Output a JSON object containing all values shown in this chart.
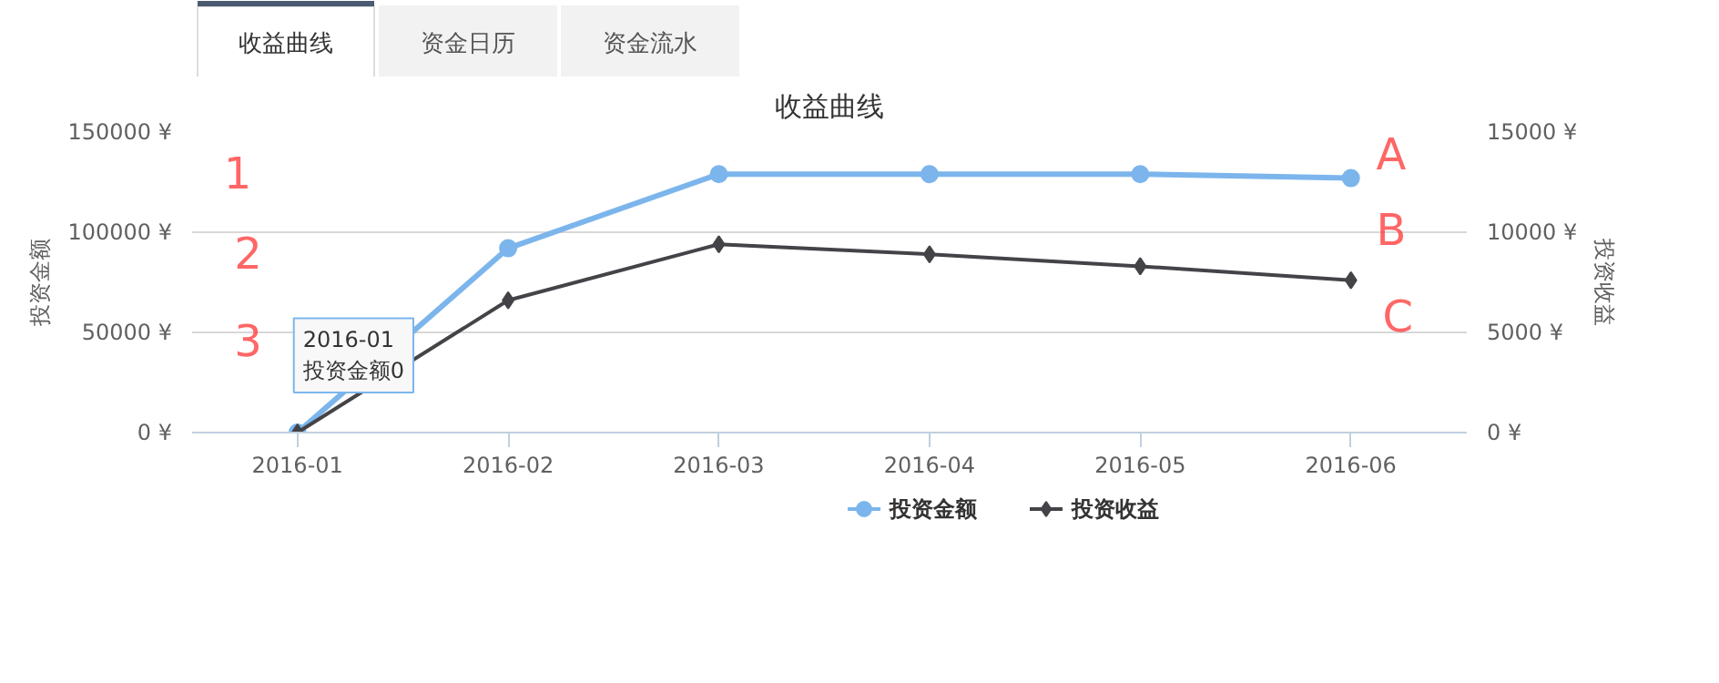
{
  "chart_data": {
    "type": "line",
    "title": "收益曲线",
    "ylabel": "投资金额",
    "y2label": "投资收益",
    "categories": [
      "2016-01",
      "2016-02",
      "2016-03",
      "2016-04",
      "2016-05",
      "2016-06"
    ],
    "series": [
      {
        "name": "投资金额",
        "color": "#7cb5ec",
        "marker": "circle",
        "values": [
          0,
          92000,
          129000,
          129000,
          129000,
          127000
        ]
      },
      {
        "name": "投资收益",
        "color": "#434348",
        "marker": "diamond",
        "axis": "y2",
        "values": [
          0,
          6600,
          9400,
          8900,
          8300,
          7600
        ]
      }
    ],
    "ylim": [
      0,
      150000
    ],
    "yticks": [
      {
        "value": 0,
        "label": "0 ¥"
      },
      {
        "value": 50000,
        "label": "50000 ¥"
      },
      {
        "value": 100000,
        "label": "100000 ¥"
      },
      {
        "value": 150000,
        "label": "150000 ¥"
      }
    ],
    "y2lim": [
      0,
      15000
    ],
    "y2ticks": [
      {
        "value": 0,
        "label": "0 ¥"
      },
      {
        "value": 5000,
        "label": "5000 ¥"
      },
      {
        "value": 10000,
        "label": "10000 ¥"
      },
      {
        "value": 15000,
        "label": "15000 ¥"
      }
    ],
    "grid": "y",
    "legend": "bottom",
    "line_style": "solid",
    "annotations": [
      "收益曲线",
      "资金日历",
      "资金流水",
      {
        "text": "2016-01\n投资金额0",
        "x": "2016-01",
        "y": 0
      },
      "1",
      "2",
      "3",
      "A",
      "B",
      "C"
    ]
  }
}
